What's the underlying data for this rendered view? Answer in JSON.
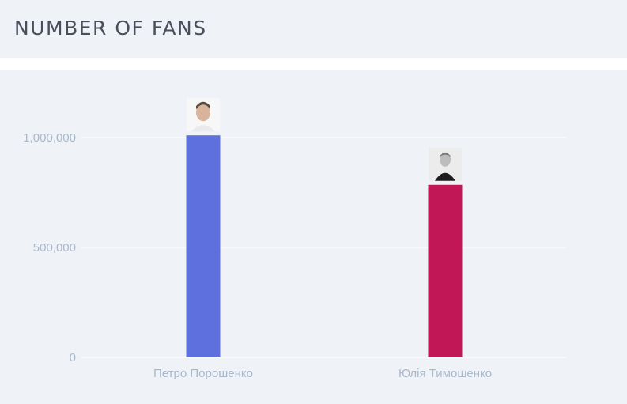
{
  "header": {
    "title": "NUMBER OF FANS"
  },
  "chart_data": {
    "type": "bar",
    "categories": [
      "Петро Порошенко",
      "Юлія Тимошенко"
    ],
    "values": [
      1010000,
      785000
    ],
    "colors": [
      "#5d70dd",
      "#c21757"
    ],
    "avatars": [
      "portrait-photo-man",
      "portrait-photo-woman"
    ],
    "ylim": [
      0,
      1000000
    ],
    "yticks": [
      0,
      500000,
      1000000
    ],
    "ytick_labels": [
      "0",
      "500,000",
      "1,000,000"
    ],
    "grid": true,
    "title": "",
    "xlabel": "",
    "ylabel": ""
  }
}
